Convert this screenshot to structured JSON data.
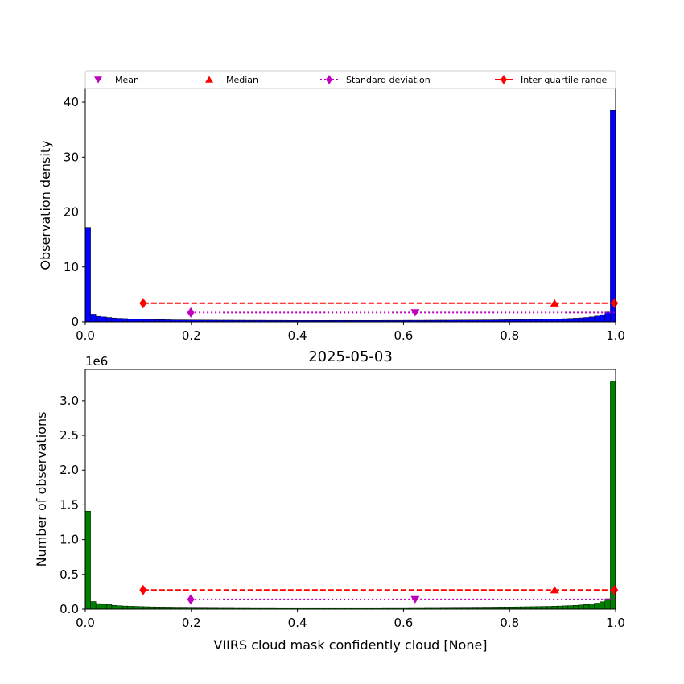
{
  "chart_data": [
    {
      "type": "bar",
      "title": "",
      "xlabel": "",
      "ylabel": "Observation density",
      "xlim": [
        0,
        1
      ],
      "ylim": [
        0,
        42.5
      ],
      "x_ticks": [
        "0.0",
        "0.2",
        "0.4",
        "0.6",
        "0.8",
        "1.0"
      ],
      "y_ticks": [
        "0",
        "10",
        "20",
        "30",
        "40"
      ],
      "bar_color": "#0000ff",
      "bin_width": 0.01,
      "values": [
        17.2,
        1.4,
        1.0,
        0.9,
        0.8,
        0.7,
        0.65,
        0.6,
        0.55,
        0.5,
        0.48,
        0.45,
        0.42,
        0.4,
        0.4,
        0.38,
        0.36,
        0.35,
        0.35,
        0.34,
        0.33,
        0.33,
        0.32,
        0.32,
        0.31,
        0.3,
        0.3,
        0.3,
        0.29,
        0.29,
        0.28,
        0.28,
        0.28,
        0.28,
        0.27,
        0.27,
        0.27,
        0.27,
        0.26,
        0.26,
        0.26,
        0.26,
        0.26,
        0.26,
        0.26,
        0.26,
        0.26,
        0.26,
        0.26,
        0.26,
        0.26,
        0.26,
        0.26,
        0.26,
        0.26,
        0.26,
        0.27,
        0.27,
        0.27,
        0.27,
        0.28,
        0.28,
        0.28,
        0.28,
        0.29,
        0.29,
        0.3,
        0.3,
        0.3,
        0.31,
        0.32,
        0.32,
        0.33,
        0.33,
        0.34,
        0.35,
        0.35,
        0.36,
        0.37,
        0.38,
        0.39,
        0.4,
        0.41,
        0.42,
        0.44,
        0.45,
        0.47,
        0.49,
        0.52,
        0.55,
        0.58,
        0.62,
        0.67,
        0.72,
        0.8,
        0.9,
        1.05,
        1.3,
        1.8,
        38.5
      ],
      "stats": {
        "mean": {
          "label": "Mean",
          "x": 0.622,
          "y": 1.7,
          "color": "#bf00bf"
        },
        "median": {
          "label": "Median",
          "x": 0.885,
          "y": 3.4,
          "color": "#ff0000"
        },
        "std": {
          "label": "Standard deviation",
          "x_range": [
            0.199,
            0.998
          ],
          "y": 1.7,
          "color": "#bf00bf"
        },
        "iqr": {
          "label": "Inter quartile range",
          "x_range": [
            0.109,
            0.998
          ],
          "y": 3.4,
          "color": "#ff0000"
        }
      },
      "legend": [
        "Mean",
        "Median",
        "Standard deviation",
        "Inter quartile range"
      ],
      "legend_position": "top"
    },
    {
      "type": "bar",
      "title": "2025-05-03",
      "xlabel": "VIIRS cloud mask confidently cloud [None]",
      "ylabel": "Number of observations",
      "offset_text": "1e6",
      "xlim": [
        0,
        1
      ],
      "ylim": [
        0,
        3.45
      ],
      "x_ticks": [
        "0.0",
        "0.2",
        "0.4",
        "0.6",
        "0.8",
        "1.0"
      ],
      "y_ticks": [
        "0.0",
        "0.5",
        "1.0",
        "1.5",
        "2.0",
        "2.5",
        "3.0"
      ],
      "bar_color": "#008000",
      "bin_width": 0.01,
      "values": [
        1.41,
        0.11,
        0.08,
        0.07,
        0.065,
        0.055,
        0.05,
        0.045,
        0.042,
        0.04,
        0.037,
        0.035,
        0.033,
        0.032,
        0.031,
        0.03,
        0.029,
        0.028,
        0.028,
        0.027,
        0.027,
        0.026,
        0.026,
        0.025,
        0.025,
        0.024,
        0.024,
        0.024,
        0.023,
        0.023,
        0.023,
        0.022,
        0.022,
        0.022,
        0.022,
        0.022,
        0.021,
        0.021,
        0.021,
        0.021,
        0.021,
        0.021,
        0.021,
        0.021,
        0.021,
        0.021,
        0.021,
        0.021,
        0.021,
        0.021,
        0.021,
        0.021,
        0.021,
        0.021,
        0.021,
        0.021,
        0.022,
        0.022,
        0.022,
        0.022,
        0.022,
        0.023,
        0.023,
        0.023,
        0.024,
        0.024,
        0.024,
        0.025,
        0.025,
        0.026,
        0.026,
        0.027,
        0.027,
        0.028,
        0.028,
        0.029,
        0.029,
        0.03,
        0.031,
        0.031,
        0.032,
        0.033,
        0.034,
        0.035,
        0.036,
        0.037,
        0.039,
        0.04,
        0.043,
        0.045,
        0.048,
        0.051,
        0.055,
        0.06,
        0.066,
        0.075,
        0.087,
        0.107,
        0.15,
        3.28
      ],
      "stats": {
        "mean": {
          "label": "Mean",
          "x": 0.622,
          "y": 0.14,
          "color": "#bf00bf"
        },
        "median": {
          "label": "Median",
          "x": 0.885,
          "y": 0.275,
          "color": "#ff0000"
        },
        "std": {
          "label": "Standard deviation",
          "x_range": [
            0.199,
            0.998
          ],
          "y": 0.14,
          "color": "#bf00bf"
        },
        "iqr": {
          "label": "Inter quartile range",
          "x_range": [
            0.109,
            0.998
          ],
          "y": 0.275,
          "color": "#ff0000"
        }
      }
    }
  ]
}
